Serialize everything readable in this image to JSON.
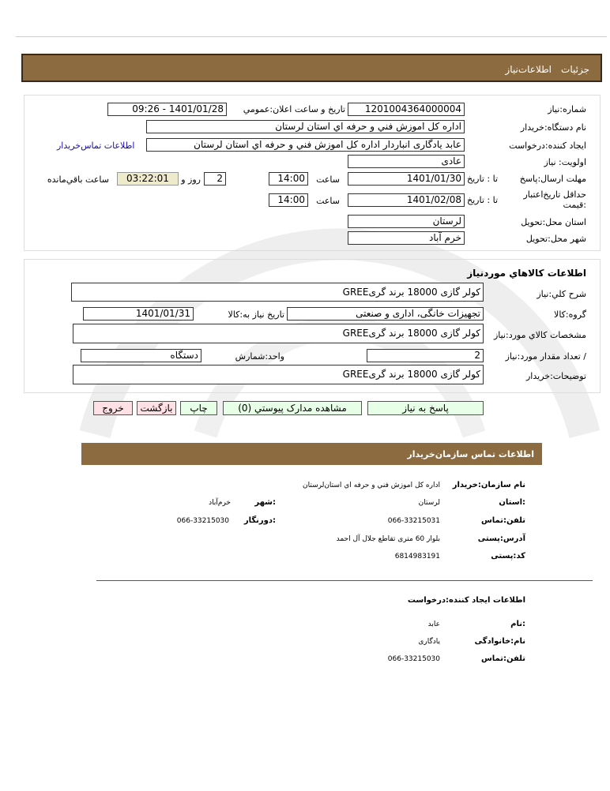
{
  "header": {
    "tabs": [
      "جزئیات",
      "اطلاعات‌نیاز"
    ]
  },
  "need": {
    "number_label": "شماره:نیاز",
    "number": "1201004364000004",
    "announce_label": "تاریخ و ساعت اعلان:عمومي",
    "announce": "1401/01/28 - 09:26",
    "buyer_label": "نام دستگاه:خریدار",
    "buyer": "اداره کل اموزش فني و حرفه اي استان لرستان",
    "creator_label": "ایجاد کننده:درخواست",
    "creator": "عابد یادگاری انباردار اداره کل اموزش فني و حرفه اي استان لرستان",
    "contact_link": "اطلاعات تماس‌خریدار",
    "priority_label": "اولویت: نیاز",
    "priority": "عادی",
    "deadline_label": "مهلت ارسال:پاسخ",
    "to_date": "تا : تاریخ",
    "deadline_date": "1401/01/30",
    "time_label": "ساعت",
    "deadline_time": "14:00",
    "days": "2",
    "days_label": "روز و",
    "remaining": "03:22:01",
    "remaining_label": "ساعت باقي‌مانده",
    "validity_label": "حداقل تاریخ‌اعتبار :قیمت",
    "validity_date": "1401/02/08",
    "validity_time": "14:00",
    "province_label": "استان محل:تحویل",
    "province": "لرستان",
    "city_label": "شهر محل:تحویل",
    "city": "خرم آباد"
  },
  "goods": {
    "title": "اطلاعات کالاهاي موردنیاز",
    "desc_label": "شرح کلي:نیاز",
    "desc": "کولر گازی 18000 برند گریGREE",
    "group_label": "گروه:کالا",
    "group": "تجهیزات خانگی، اداری و صنعتی",
    "need_date_label": "تاریخ نیاز به:کالا",
    "need_date": "1401/01/31",
    "spec_label": "مشخصات کالاي مورد:نیاز",
    "spec": "کولر گازی 18000 برند گریGREE",
    "qty_label": "/ تعداد مقدار مورد:نیاز",
    "qty": "2",
    "unit_label": "واحد:شمارش",
    "unit": "دستگاه",
    "notes_label": "توضیحات:خریدار",
    "notes": "کولر گازی 18000 برند گریGREE"
  },
  "buttons": {
    "reply": "پاسخ به نیاز",
    "docs": "مشاهده مدارک پیوستي (0)",
    "print": "چاپ",
    "back": "بازگشت",
    "exit": "خروج"
  },
  "contact": {
    "title": "اطلاعات  تماس سازمان‌خریدار",
    "org_label": "نام سازمان:خریدار",
    "org": "اداره کل اموزش فني و حرفه اي استان‌لرستان",
    "province_label": ":استان",
    "province": "لرستان",
    "city_label": ":شهر",
    "city": "خرم‌آباد",
    "phone_label": "تلفن:تماس",
    "phone": "066-33215031",
    "fax_label": ":دورنگار",
    "fax": "066-33215030",
    "address_label": "آدرس:پستی",
    "address": "بلوار 60 متری تقاطع جلال آل احمد",
    "postal_label": "کد:پستی",
    "postal": "6814983191",
    "creator_title": "اطلاعات ایجاد کننده:درخواست",
    "name_label": ":نام",
    "name": "عابد",
    "family_label": "نام:خانوادگی",
    "family": "یادگاری",
    "cphone_label": "تلفن:تماس",
    "cphone": "066-33215030"
  },
  "colors": {
    "header_bar": "#8b6b3f",
    "timer_bg": "#eeeacc",
    "link": "#1a0dab",
    "ok_button": "#e6ffe6",
    "cancel_button": "#ffe0e4"
  }
}
